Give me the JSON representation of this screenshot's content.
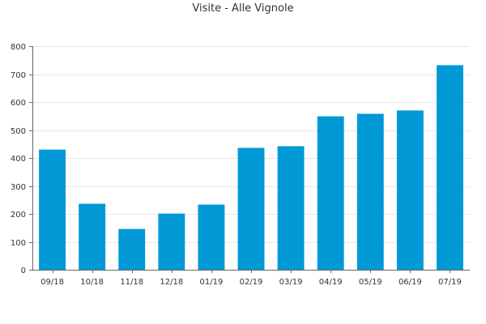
{
  "chart_data": {
    "type": "bar",
    "title": "Visite - Alle Vignole",
    "xlabel": "",
    "ylabel": "",
    "categories": [
      "09/18",
      "10/18",
      "11/18",
      "12/18",
      "01/19",
      "02/19",
      "03/19",
      "04/19",
      "05/19",
      "06/19",
      "07/19"
    ],
    "values": [
      430,
      236,
      146,
      201,
      233,
      436,
      442,
      549,
      558,
      570,
      732
    ],
    "ylim": [
      0,
      800
    ],
    "yticks": [
      "0",
      "100",
      "200",
      "300",
      "400",
      "500",
      "600",
      "700",
      "800"
    ],
    "grid": true,
    "bar_color": "#0099d6"
  }
}
